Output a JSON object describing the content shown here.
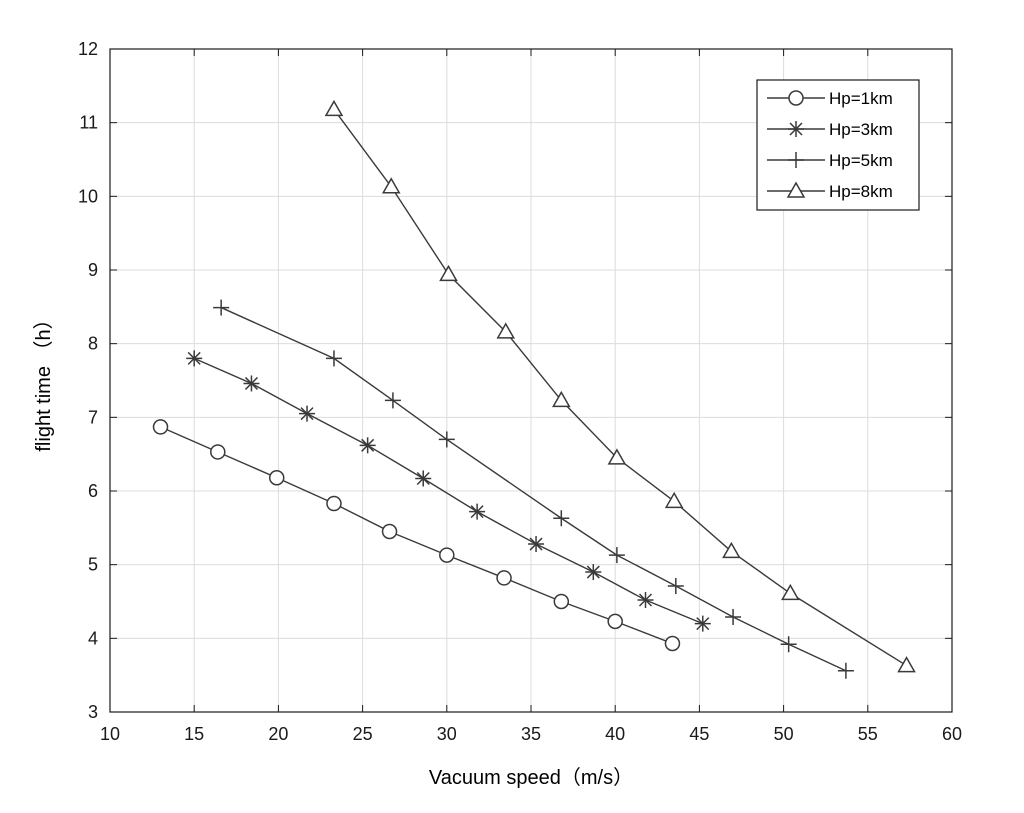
{
  "chart_data": {
    "type": "line",
    "title": "",
    "xlabel": "Vacuum speed（m/s）",
    "ylabel": "flight  time （h）",
    "xlim": [
      10,
      60
    ],
    "ylim": [
      3,
      12
    ],
    "x_ticks": [
      10,
      15,
      20,
      25,
      30,
      35,
      40,
      45,
      50,
      55,
      60
    ],
    "y_ticks": [
      3,
      4,
      5,
      6,
      7,
      8,
      9,
      10,
      11,
      12
    ],
    "grid": true,
    "legend_position": "top-right",
    "line_color": "#3a3a3a",
    "grid_color": "#dcdcdc",
    "series": [
      {
        "name": "Hp=1km",
        "marker": "circle",
        "x": [
          13.0,
          16.4,
          19.9,
          23.3,
          26.6,
          30.0,
          33.4,
          36.8,
          40.0,
          43.4
        ],
        "y": [
          6.87,
          6.53,
          6.18,
          5.83,
          5.45,
          5.13,
          4.82,
          4.5,
          4.23,
          3.93
        ]
      },
      {
        "name": "Hp=3km",
        "marker": "asterisk",
        "x": [
          15.0,
          18.4,
          21.7,
          25.3,
          28.6,
          31.8,
          35.3,
          38.7,
          41.8,
          45.2
        ],
        "y": [
          7.8,
          7.46,
          7.05,
          6.62,
          6.17,
          5.72,
          5.28,
          4.9,
          4.52,
          4.2
        ]
      },
      {
        "name": "Hp=5km",
        "marker": "plus",
        "x": [
          16.6,
          23.3,
          26.8,
          30.0,
          36.8,
          40.1,
          43.6,
          47.0,
          50.3,
          53.7
        ],
        "y": [
          8.49,
          7.8,
          7.23,
          6.7,
          5.63,
          5.13,
          4.71,
          4.29,
          3.92,
          3.56
        ]
      },
      {
        "name": "Hp=8km",
        "marker": "triangle",
        "x": [
          23.3,
          26.7,
          30.1,
          33.5,
          36.8,
          40.1,
          43.5,
          46.9,
          50.4,
          57.3
        ],
        "y": [
          11.18,
          10.13,
          8.94,
          8.16,
          7.23,
          6.45,
          5.86,
          5.18,
          4.61,
          3.63
        ]
      }
    ]
  }
}
